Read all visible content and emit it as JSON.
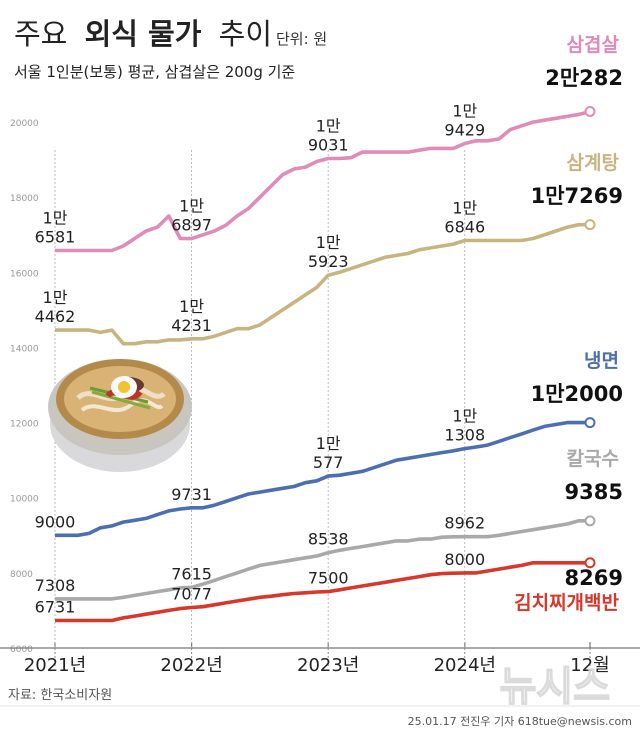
{
  "title": {
    "bold": "외식 물가",
    "pre": "주요",
    "post": "추이",
    "unit": "단위: 원"
  },
  "subtitle": "서울 1인분(보통) 평균, 삼겹살은 200g 기준",
  "source": "자료: 한국소비자원",
  "footer": "25.01.17 전진우 기자 618tue@newsis.com",
  "watermark": "뉴시스",
  "photo_alt": "naengmyeon-bowl",
  "chart_data": {
    "type": "line",
    "ylim": [
      6000,
      20800
    ],
    "yticks": [
      6000,
      8000,
      10000,
      12000,
      14000,
      16000,
      18000,
      20000
    ],
    "ytick_labels": [
      "6000",
      "8000",
      "10000",
      "12000",
      "14000",
      "16000",
      "18000",
      "20000"
    ],
    "xlim": [
      0,
      47
    ],
    "x_tick_positions": [
      0,
      12,
      24,
      36,
      47
    ],
    "x_tick_labels": [
      "2021년",
      "2022년",
      "2023년",
      "2024년",
      "12월"
    ],
    "grid": false,
    "series": [
      {
        "name": "삼겹살",
        "color": "#e08bb8",
        "end_label": "2만282",
        "values": [
          16581,
          16581,
          16581,
          16581,
          16581,
          16581,
          16700,
          16900,
          17100,
          17200,
          17500,
          16900,
          16897,
          17000,
          17100,
          17250,
          17500,
          17700,
          18000,
          18300,
          18600,
          18750,
          18800,
          18950,
          19031,
          19031,
          19050,
          19200,
          19200,
          19200,
          19200,
          19200,
          19250,
          19300,
          19300,
          19300,
          19429,
          19500,
          19500,
          19550,
          19800,
          19900,
          20000,
          20050,
          20100,
          20150,
          20200,
          20282
        ],
        "annotations": [
          {
            "x": 0,
            "y": 16581,
            "text": [
              "1만",
              "6581"
            ]
          },
          {
            "x": 12,
            "y": 16897,
            "text": [
              "1만",
              "6897"
            ]
          },
          {
            "x": 24,
            "y": 19031,
            "text": [
              "1만",
              "9031"
            ]
          },
          {
            "x": 36,
            "y": 19429,
            "text": [
              "1만",
              "9429"
            ]
          }
        ]
      },
      {
        "name": "삼계탕",
        "color": "#c8b47e",
        "end_label": "1만7269",
        "values": [
          14462,
          14462,
          14462,
          14462,
          14400,
          14462,
          14100,
          14100,
          14150,
          14150,
          14200,
          14200,
          14231,
          14231,
          14300,
          14400,
          14500,
          14500,
          14600,
          14800,
          15000,
          15200,
          15400,
          15600,
          15923,
          16000,
          16100,
          16200,
          16300,
          16400,
          16450,
          16500,
          16600,
          16650,
          16700,
          16750,
          16846,
          16846,
          16846,
          16846,
          16846,
          16846,
          16900,
          17000,
          17100,
          17200,
          17269,
          17269
        ],
        "annotations": [
          {
            "x": 0,
            "y": 14462,
            "text": [
              "1만",
              "4462"
            ]
          },
          {
            "x": 12,
            "y": 14231,
            "text": [
              "1만",
              "4231"
            ]
          },
          {
            "x": 24,
            "y": 15923,
            "text": [
              "1만",
              "5923"
            ]
          },
          {
            "x": 36,
            "y": 16846,
            "text": [
              "1만",
              "6846"
            ]
          }
        ]
      },
      {
        "name": "냉면",
        "color": "#4b6fb0",
        "end_label": "1만2000",
        "values": [
          9000,
          9000,
          9000,
          9050,
          9200,
          9250,
          9350,
          9400,
          9450,
          9550,
          9650,
          9700,
          9731,
          9731,
          9800,
          9900,
          10000,
          10100,
          10150,
          10200,
          10250,
          10300,
          10400,
          10450,
          10577,
          10600,
          10650,
          10700,
          10800,
          10900,
          11000,
          11050,
          11100,
          11150,
          11200,
          11250,
          11308,
          11350,
          11400,
          11500,
          11600,
          11700,
          11800,
          11900,
          11950,
          12000,
          12000,
          12000
        ],
        "annotations": [
          {
            "x": 0,
            "y": 9000,
            "text": [
              "9000"
            ]
          },
          {
            "x": 12,
            "y": 9731,
            "text": [
              "9731"
            ]
          },
          {
            "x": 24,
            "y": 10577,
            "text": [
              "1만",
              "577"
            ]
          },
          {
            "x": 36,
            "y": 11308,
            "text": [
              "1만",
              "1308"
            ]
          }
        ]
      },
      {
        "name": "칼국수",
        "color": "#a9a9a9",
        "end_label": "9385",
        "values": [
          7308,
          7308,
          7308,
          7308,
          7308,
          7308,
          7350,
          7400,
          7450,
          7500,
          7550,
          7600,
          7615,
          7700,
          7800,
          7900,
          8000,
          8100,
          8200,
          8250,
          8300,
          8350,
          8400,
          8450,
          8538,
          8600,
          8650,
          8700,
          8750,
          8800,
          8850,
          8850,
          8900,
          8900,
          8950,
          8960,
          8962,
          8962,
          8962,
          9000,
          9050,
          9100,
          9150,
          9200,
          9250,
          9300,
          9385,
          9385
        ],
        "annotations": [
          {
            "x": 0,
            "y": 7308,
            "text": [
              "7308"
            ]
          },
          {
            "x": 12,
            "y": 7615,
            "text": [
              "7615"
            ]
          },
          {
            "x": 24,
            "y": 8538,
            "text": [
              "8538"
            ]
          },
          {
            "x": 36,
            "y": 8962,
            "text": [
              "8962"
            ]
          }
        ]
      },
      {
        "name": "김치찌개백반",
        "color": "#d8372b",
        "end_label": "8269",
        "values": [
          6731,
          6731,
          6731,
          6731,
          6731,
          6731,
          6800,
          6850,
          6900,
          6950,
          7000,
          7050,
          7077,
          7100,
          7150,
          7200,
          7250,
          7300,
          7350,
          7380,
          7420,
          7450,
          7470,
          7490,
          7500,
          7550,
          7600,
          7650,
          7700,
          7750,
          7800,
          7850,
          7900,
          7950,
          7980,
          7990,
          8000,
          8000,
          8050,
          8100,
          8150,
          8200,
          8269,
          8269,
          8269,
          8269,
          8269,
          8269
        ],
        "annotations": [
          {
            "x": 0,
            "y": 6731,
            "text": [
              "6731"
            ]
          },
          {
            "x": 12,
            "y": 7077,
            "text": [
              "7077"
            ]
          },
          {
            "x": 24,
            "y": 7500,
            "text": [
              "7500"
            ]
          },
          {
            "x": 36,
            "y": 8000,
            "text": [
              "8000"
            ]
          }
        ]
      }
    ]
  }
}
